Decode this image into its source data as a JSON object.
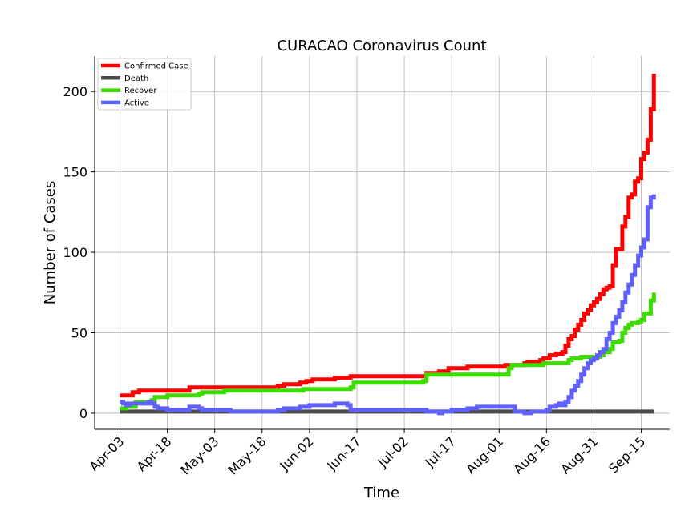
{
  "chart_data": {
    "type": "line",
    "title": "CURACAO Coronavirus Count",
    "xlabel": "Time",
    "ylabel": "Number of Cases",
    "x_tick_labels": [
      "Apr-03",
      "Apr-18",
      "May-03",
      "May-18",
      "Jun-02",
      "Jun-17",
      "Jul-02",
      "Jul-17",
      "Aug-01",
      "Aug-16",
      "Aug-31",
      "Sep-15"
    ],
    "x_tick_days": [
      0,
      15,
      30,
      45,
      60,
      75,
      90,
      105,
      120,
      135,
      150,
      165
    ],
    "x_range_days": [
      -8,
      174
    ],
    "ylim": [
      -10,
      222
    ],
    "y_ticks": [
      0,
      50,
      100,
      150,
      200
    ],
    "grid": true,
    "legend_position": "top-left",
    "series": [
      {
        "name": "Confirmed Case",
        "color": "#ff0000",
        "points": [
          [
            0,
            11
          ],
          [
            3,
            11
          ],
          [
            4,
            13
          ],
          [
            6,
            14
          ],
          [
            21,
            14
          ],
          [
            22,
            16
          ],
          [
            49,
            16
          ],
          [
            50,
            17
          ],
          [
            52,
            18
          ],
          [
            57,
            19
          ],
          [
            59,
            20
          ],
          [
            61,
            21
          ],
          [
            68,
            22
          ],
          [
            73,
            23
          ],
          [
            96,
            23
          ],
          [
            97,
            25
          ],
          [
            101,
            26
          ],
          [
            104,
            28
          ],
          [
            110,
            29
          ],
          [
            122,
            30
          ],
          [
            128,
            31
          ],
          [
            129,
            32
          ],
          [
            133,
            33
          ],
          [
            134,
            34
          ],
          [
            136,
            36
          ],
          [
            138,
            37
          ],
          [
            140,
            38
          ],
          [
            141,
            42
          ],
          [
            142,
            46
          ],
          [
            143,
            48
          ],
          [
            144,
            52
          ],
          [
            145,
            55
          ],
          [
            146,
            58
          ],
          [
            147,
            62
          ],
          [
            148,
            64
          ],
          [
            149,
            67
          ],
          [
            150,
            69
          ],
          [
            151,
            71
          ],
          [
            152,
            74
          ],
          [
            153,
            77
          ],
          [
            154,
            78
          ],
          [
            155,
            79
          ],
          [
            156,
            92
          ],
          [
            157,
            102
          ],
          [
            159,
            116
          ],
          [
            160,
            122
          ],
          [
            161,
            134
          ],
          [
            162,
            136
          ],
          [
            163,
            144
          ],
          [
            164,
            146
          ],
          [
            165,
            158
          ],
          [
            166,
            162
          ],
          [
            167,
            170
          ],
          [
            168,
            189
          ],
          [
            169,
            211
          ]
        ]
      },
      {
        "name": "Death",
        "color": "#4a4a4a",
        "points": [
          [
            0,
            1
          ],
          [
            166,
            1
          ],
          [
            169,
            1
          ]
        ]
      },
      {
        "name": "Recover",
        "color": "#3ddc00",
        "points": [
          [
            0,
            3
          ],
          [
            2,
            4
          ],
          [
            5,
            7
          ],
          [
            10,
            8
          ],
          [
            11,
            10
          ],
          [
            15,
            11
          ],
          [
            25,
            12
          ],
          [
            26,
            13
          ],
          [
            33,
            14
          ],
          [
            58,
            15
          ],
          [
            73,
            16
          ],
          [
            74,
            19
          ],
          [
            96,
            20
          ],
          [
            97,
            24
          ],
          [
            122,
            24
          ],
          [
            123,
            28
          ],
          [
            124,
            30
          ],
          [
            133,
            30
          ],
          [
            134,
            31
          ],
          [
            141,
            31
          ],
          [
            142,
            33
          ],
          [
            143,
            34
          ],
          [
            146,
            35
          ],
          [
            152,
            36
          ],
          [
            153,
            38
          ],
          [
            155,
            40
          ],
          [
            156,
            44
          ],
          [
            158,
            45
          ],
          [
            159,
            50
          ],
          [
            160,
            53
          ],
          [
            161,
            55
          ],
          [
            162,
            56
          ],
          [
            164,
            57
          ],
          [
            165,
            58
          ],
          [
            166,
            62
          ],
          [
            168,
            70
          ],
          [
            169,
            75
          ]
        ]
      },
      {
        "name": "Active",
        "color": "#6060ff",
        "points": [
          [
            0,
            7
          ],
          [
            1,
            6
          ],
          [
            2,
            5
          ],
          [
            3,
            6
          ],
          [
            8,
            6
          ],
          [
            9,
            7
          ],
          [
            10,
            6
          ],
          [
            11,
            4
          ],
          [
            12,
            3
          ],
          [
            15,
            2
          ],
          [
            21,
            2
          ],
          [
            22,
            4
          ],
          [
            25,
            3
          ],
          [
            26,
            2
          ],
          [
            34,
            2
          ],
          [
            35,
            1
          ],
          [
            49,
            1
          ],
          [
            50,
            2
          ],
          [
            52,
            3
          ],
          [
            56,
            3
          ],
          [
            57,
            4
          ],
          [
            60,
            5
          ],
          [
            68,
            6
          ],
          [
            72,
            5
          ],
          [
            73,
            2
          ],
          [
            96,
            2
          ],
          [
            97,
            1
          ],
          [
            101,
            0
          ],
          [
            102,
            1
          ],
          [
            105,
            2
          ],
          [
            110,
            3
          ],
          [
            113,
            4
          ],
          [
            124,
            4
          ],
          [
            125,
            1
          ],
          [
            128,
            0
          ],
          [
            130,
            1
          ],
          [
            135,
            2
          ],
          [
            136,
            4
          ],
          [
            138,
            5
          ],
          [
            139,
            6
          ],
          [
            140,
            5
          ],
          [
            141,
            7
          ],
          [
            142,
            10
          ],
          [
            143,
            14
          ],
          [
            144,
            17
          ],
          [
            145,
            20
          ],
          [
            146,
            24
          ],
          [
            147,
            28
          ],
          [
            148,
            31
          ],
          [
            149,
            33
          ],
          [
            150,
            34
          ],
          [
            151,
            36
          ],
          [
            152,
            38
          ],
          [
            153,
            40
          ],
          [
            154,
            46
          ],
          [
            155,
            50
          ],
          [
            156,
            56
          ],
          [
            157,
            60
          ],
          [
            158,
            64
          ],
          [
            159,
            69
          ],
          [
            160,
            75
          ],
          [
            161,
            80
          ],
          [
            162,
            86
          ],
          [
            163,
            92
          ],
          [
            164,
            98
          ],
          [
            165,
            103
          ],
          [
            166,
            108
          ],
          [
            167,
            128
          ],
          [
            168,
            134
          ],
          [
            169,
            136
          ]
        ]
      }
    ]
  }
}
